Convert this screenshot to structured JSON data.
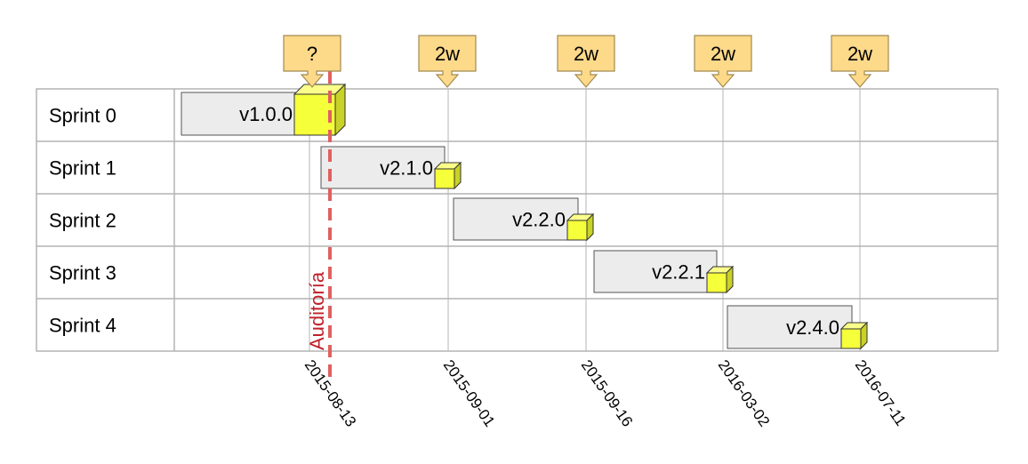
{
  "rows": [
    {
      "label": "Sprint 0",
      "release": "v1.0.0"
    },
    {
      "label": "Sprint 1",
      "release": "v2.1.0"
    },
    {
      "label": "Sprint 2",
      "release": "v2.2.0"
    },
    {
      "label": "Sprint 3",
      "release": "v2.2.1"
    },
    {
      "label": "Sprint 4",
      "release": "v2.4.0"
    }
  ],
  "dates": [
    "2015-08-13",
    "2015-09-01",
    "2015-09-16",
    "2016-03-02",
    "2016-07-11"
  ],
  "callouts": [
    "?",
    "2w",
    "2w",
    "2w",
    "2w"
  ],
  "audit_label": "Auditoría",
  "colors": {
    "grid": "#b4b4b4",
    "bar_fill": "#ececec",
    "bar_stroke": "#555555",
    "callout_fill": "#fdd98a",
    "callout_stroke": "#a28a50",
    "cube_front": "#f5ff3a",
    "cube_side": "#c9d226",
    "cube_top": "#fbff8a",
    "audit_line": "#e06060",
    "audit_text": "#c0202a"
  }
}
